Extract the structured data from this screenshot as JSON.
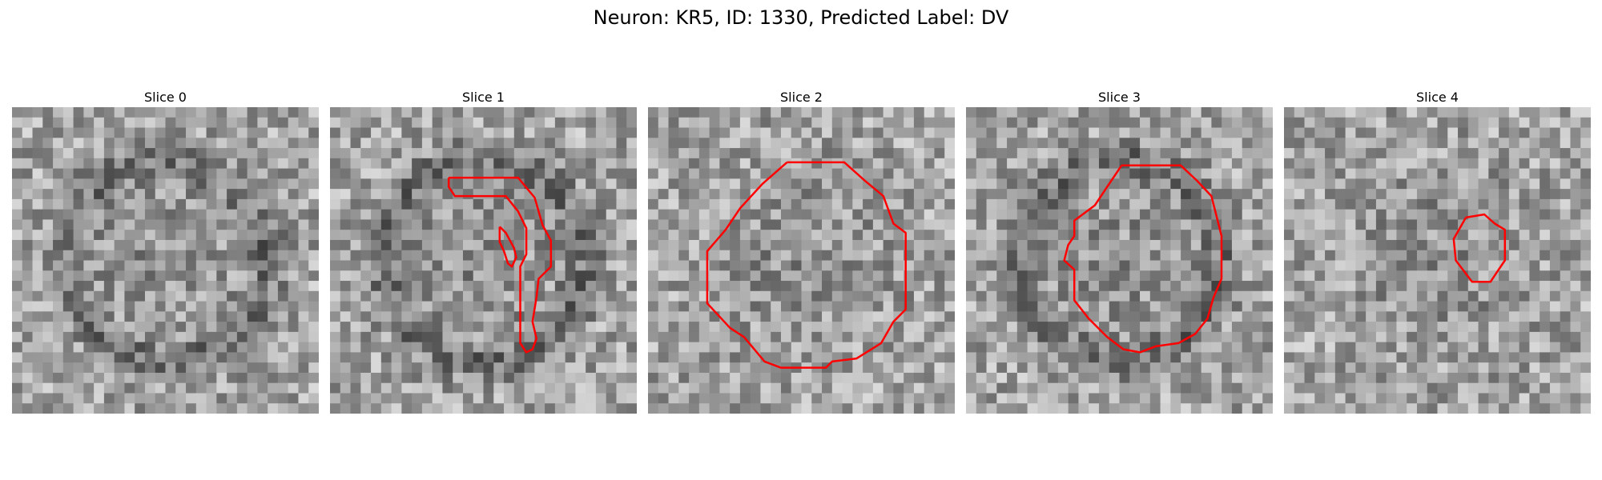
{
  "figure": {
    "title": "Neuron: KR5, ID: 1330, Predicted Label: DV"
  },
  "slices": [
    {
      "label": "Slice 0",
      "seed": 11,
      "dark_ring": true,
      "contours": []
    },
    {
      "label": "Slice 1",
      "seed": 23,
      "dark_ring": true,
      "contours": [
        [
          [
            0.387,
            0.23
          ],
          [
            0.613,
            0.23
          ],
          [
            0.667,
            0.295
          ],
          [
            0.693,
            0.385
          ],
          [
            0.72,
            0.435
          ],
          [
            0.72,
            0.52
          ],
          [
            0.68,
            0.56
          ],
          [
            0.673,
            0.62
          ],
          [
            0.66,
            0.7
          ],
          [
            0.673,
            0.755
          ],
          [
            0.66,
            0.79
          ],
          [
            0.64,
            0.8
          ],
          [
            0.62,
            0.77
          ],
          [
            0.62,
            0.7
          ],
          [
            0.62,
            0.52
          ],
          [
            0.64,
            0.48
          ],
          [
            0.64,
            0.395
          ],
          [
            0.613,
            0.34
          ],
          [
            0.573,
            0.29
          ],
          [
            0.407,
            0.29
          ],
          [
            0.387,
            0.26
          ],
          [
            0.387,
            0.23
          ]
        ],
        [
          [
            0.553,
            0.39
          ],
          [
            0.573,
            0.41
          ],
          [
            0.6,
            0.46
          ],
          [
            0.607,
            0.49
          ],
          [
            0.593,
            0.52
          ],
          [
            0.58,
            0.51
          ],
          [
            0.567,
            0.47
          ],
          [
            0.553,
            0.44
          ],
          [
            0.553,
            0.39
          ]
        ]
      ]
    },
    {
      "label": "Slice 2",
      "seed": 37,
      "dark_ring": false,
      "contours": [
        [
          [
            0.453,
            0.18
          ],
          [
            0.64,
            0.18
          ],
          [
            0.707,
            0.24
          ],
          [
            0.767,
            0.29
          ],
          [
            0.8,
            0.38
          ],
          [
            0.84,
            0.41
          ],
          [
            0.84,
            0.66
          ],
          [
            0.8,
            0.7
          ],
          [
            0.76,
            0.77
          ],
          [
            0.68,
            0.82
          ],
          [
            0.6,
            0.83
          ],
          [
            0.58,
            0.85
          ],
          [
            0.433,
            0.85
          ],
          [
            0.38,
            0.83
          ],
          [
            0.313,
            0.75
          ],
          [
            0.267,
            0.72
          ],
          [
            0.193,
            0.64
          ],
          [
            0.193,
            0.47
          ],
          [
            0.253,
            0.4
          ],
          [
            0.3,
            0.33
          ],
          [
            0.373,
            0.25
          ],
          [
            0.453,
            0.18
          ]
        ]
      ]
    },
    {
      "label": "Slice 3",
      "seed": 53,
      "dark_ring": true,
      "contours": [
        [
          [
            0.507,
            0.19
          ],
          [
            0.7,
            0.19
          ],
          [
            0.753,
            0.24
          ],
          [
            0.8,
            0.29
          ],
          [
            0.833,
            0.42
          ],
          [
            0.833,
            0.56
          ],
          [
            0.807,
            0.62
          ],
          [
            0.787,
            0.69
          ],
          [
            0.747,
            0.74
          ],
          [
            0.693,
            0.77
          ],
          [
            0.62,
            0.78
          ],
          [
            0.567,
            0.8
          ],
          [
            0.513,
            0.79
          ],
          [
            0.46,
            0.75
          ],
          [
            0.4,
            0.69
          ],
          [
            0.353,
            0.63
          ],
          [
            0.353,
            0.53
          ],
          [
            0.32,
            0.5
          ],
          [
            0.333,
            0.45
          ],
          [
            0.353,
            0.42
          ],
          [
            0.353,
            0.37
          ],
          [
            0.42,
            0.32
          ],
          [
            0.46,
            0.26
          ],
          [
            0.507,
            0.19
          ]
        ]
      ]
    },
    {
      "label": "Slice 4",
      "seed": 71,
      "dark_ring": false,
      "contours": [
        [
          [
            0.593,
            0.36
          ],
          [
            0.653,
            0.35
          ],
          [
            0.687,
            0.38
          ],
          [
            0.72,
            0.4
          ],
          [
            0.72,
            0.5
          ],
          [
            0.693,
            0.54
          ],
          [
            0.673,
            0.57
          ],
          [
            0.613,
            0.57
          ],
          [
            0.56,
            0.5
          ],
          [
            0.553,
            0.43
          ],
          [
            0.593,
            0.36
          ]
        ]
      ]
    }
  ],
  "colors": {
    "contour": "#ff0000"
  }
}
